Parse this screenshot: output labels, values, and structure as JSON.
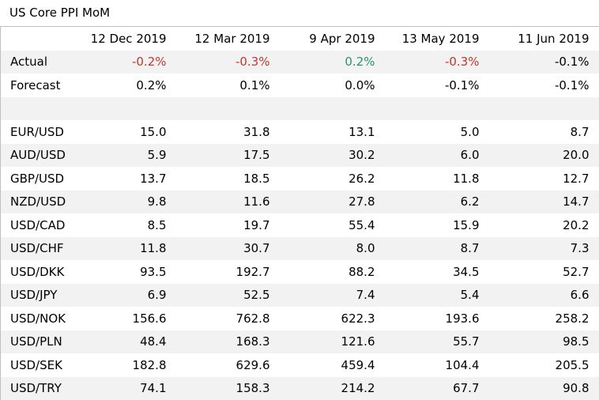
{
  "title": "US Core PPI MoM",
  "columns": [
    "",
    "12 Dec 2019",
    "12 Mar 2019",
    "9 Apr 2019",
    "13 May 2019",
    "11 Jun 2019"
  ],
  "colors": {
    "negative": "#c0392b",
    "positive": "#27946a",
    "stripe": "#f2f2f2",
    "border": "#bfbfbf"
  },
  "actual": {
    "label": "Actual",
    "values": [
      "-0.2%",
      "-0.3%",
      "0.2%",
      "-0.3%",
      "-0.1%"
    ],
    "tone": [
      "neg",
      "neg",
      "pos",
      "neg",
      ""
    ]
  },
  "forecast": {
    "label": "Forecast",
    "values": [
      "0.2%",
      "0.1%",
      "0.0%",
      "-0.1%",
      "-0.1%"
    ]
  },
  "pairs": [
    {
      "label": "EUR/USD",
      "values": [
        "15.0",
        "31.8",
        "13.1",
        "5.0",
        "8.7"
      ]
    },
    {
      "label": "AUD/USD",
      "values": [
        "5.9",
        "17.5",
        "30.2",
        "6.0",
        "20.0"
      ]
    },
    {
      "label": "GBP/USD",
      "values": [
        "13.7",
        "18.5",
        "26.2",
        "11.8",
        "12.7"
      ]
    },
    {
      "label": "NZD/USD",
      "values": [
        "9.8",
        "11.6",
        "27.8",
        "6.2",
        "14.7"
      ]
    },
    {
      "label": "USD/CAD",
      "values": [
        "8.5",
        "19.7",
        "55.4",
        "15.9",
        "20.2"
      ]
    },
    {
      "label": "USD/CHF",
      "values": [
        "11.8",
        "30.7",
        "8.0",
        "8.7",
        "7.3"
      ]
    },
    {
      "label": "USD/DKK",
      "values": [
        "93.5",
        "192.7",
        "88.2",
        "34.5",
        "52.7"
      ]
    },
    {
      "label": "USD/JPY",
      "values": [
        "6.9",
        "52.5",
        "7.4",
        "5.4",
        "6.6"
      ]
    },
    {
      "label": "USD/NOK",
      "values": [
        "156.6",
        "762.8",
        "622.3",
        "193.6",
        "258.2"
      ]
    },
    {
      "label": "USD/PLN",
      "values": [
        "48.4",
        "168.3",
        "121.6",
        "55.7",
        "98.5"
      ]
    },
    {
      "label": "USD/SEK",
      "values": [
        "182.8",
        "629.6",
        "459.4",
        "104.4",
        "205.5"
      ]
    },
    {
      "label": "USD/TRY",
      "values": [
        "74.1",
        "158.3",
        "214.2",
        "67.7",
        "90.8"
      ]
    }
  ]
}
